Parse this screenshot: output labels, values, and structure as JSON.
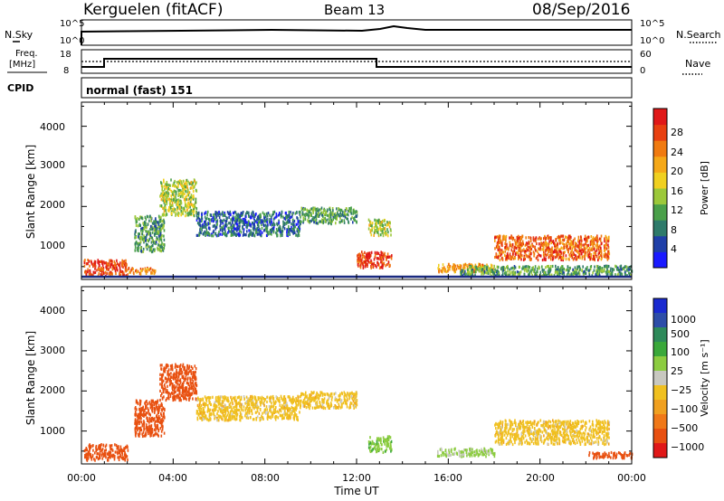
{
  "header": {
    "station": "Kerguelen (fitACF)",
    "beam": "Beam 13",
    "date": "08/Sep/2016"
  },
  "top_panels": {
    "nsky_label": "N.Sky",
    "nsky_ticks": [
      "10^5",
      "10^0"
    ],
    "nsearch_label": "N.Search",
    "nsearch_ticks": [
      "10^5",
      "10^0"
    ],
    "freq_label_1": "Freq.",
    "freq_label_2": "[MHz]",
    "freq_ticks": [
      "18",
      "8"
    ],
    "nave_label": "Nave",
    "nave_ticks": [
      "60",
      "0"
    ],
    "cpid_label": "CPID",
    "cpid_value": "normal (fast) 151"
  },
  "colorbars": {
    "power": {
      "label": "Power [dB]",
      "ticks": [
        "28",
        "24",
        "20",
        "16",
        "12",
        "8",
        "4"
      ],
      "colors": [
        "#1a1aff",
        "#1f3fa8",
        "#2e7a6a",
        "#4aa04a",
        "#9cc83a",
        "#f0d020",
        "#f5a818",
        "#f07a10",
        "#e84010",
        "#e01818"
      ]
    },
    "velocity": {
      "label": "Velocity [m s⁻¹]",
      "ticks": [
        "1000",
        "500",
        "100",
        "25",
        "−25",
        "−100",
        "−500",
        "−1000"
      ],
      "colors": [
        "#1a2ad0",
        "#2d4da8",
        "#2e8a5a",
        "#3aa83a",
        "#8ccc40",
        "#c8c8c0",
        "#f0c020",
        "#f0a020",
        "#f07818",
        "#e85010",
        "#e01818"
      ]
    }
  },
  "axes": {
    "ylabel": "Slant Range [km]",
    "yticks": [
      "4000",
      "3000",
      "2000",
      "1000"
    ],
    "xticks": [
      "00:00",
      "04:00",
      "08:00",
      "12:00",
      "16:00",
      "20:00",
      "00:00"
    ],
    "xlabel": "Time UT"
  },
  "chart_data": [
    {
      "type": "heatmap",
      "title": "",
      "xlabel": "",
      "ylabel": "Slant Range [km]",
      "x_range_hours": [
        0,
        24
      ],
      "ylim": [
        180,
        4600
      ],
      "colorbar": "Power [dB]",
      "regions": [
        {
          "x": [
            0.1,
            2.0
          ],
          "y": [
            300,
            700
          ],
          "value": 26
        },
        {
          "x": [
            2.0,
            3.2
          ],
          "y": [
            350,
            500
          ],
          "value": 22
        },
        {
          "x": [
            2.3,
            3.6
          ],
          "y": [
            900,
            1800
          ],
          "value": 10
        },
        {
          "x": [
            3.4,
            5.0
          ],
          "y": [
            1800,
            2700
          ],
          "value": 14
        },
        {
          "x": [
            5.0,
            9.5
          ],
          "y": [
            1300,
            1900
          ],
          "value": 6
        },
        {
          "x": [
            9.5,
            12.0
          ],
          "y": [
            1600,
            2000
          ],
          "value": 10
        },
        {
          "x": [
            12.0,
            13.5
          ],
          "y": [
            500,
            900
          ],
          "value": 26
        },
        {
          "x": [
            12.5,
            13.5
          ],
          "y": [
            1300,
            1700
          ],
          "value": 14
        },
        {
          "x": [
            15.5,
            18.0
          ],
          "y": [
            400,
            600
          ],
          "value": 20
        },
        {
          "x": [
            18.0,
            23.0
          ],
          "y": [
            700,
            1300
          ],
          "value": 24
        },
        {
          "x": [
            16.5,
            24.0
          ],
          "y": [
            300,
            550
          ],
          "value": 10
        }
      ]
    },
    {
      "type": "heatmap",
      "title": "",
      "xlabel": "Time UT",
      "ylabel": "Slant Range [km]",
      "x_range_hours": [
        0,
        24
      ],
      "ylim": [
        180,
        4600
      ],
      "colorbar": "Velocity [m s-1]",
      "regions": [
        {
          "x": [
            0.1,
            2.0
          ],
          "y": [
            300,
            700
          ],
          "value": -150
        },
        {
          "x": [
            2.3,
            3.6
          ],
          "y": [
            900,
            1800
          ],
          "value": -200
        },
        {
          "x": [
            3.4,
            5.0
          ],
          "y": [
            1800,
            2700
          ],
          "value": -150
        },
        {
          "x": [
            5.0,
            9.5
          ],
          "y": [
            1300,
            1900
          ],
          "value": 0
        },
        {
          "x": [
            9.5,
            12.0
          ],
          "y": [
            1600,
            2000
          ],
          "value": 0
        },
        {
          "x": [
            12.5,
            13.5
          ],
          "y": [
            500,
            900
          ],
          "value": 80
        },
        {
          "x": [
            15.5,
            18.0
          ],
          "y": [
            400,
            600
          ],
          "value": 60
        },
        {
          "x": [
            18.0,
            23.0
          ],
          "y": [
            700,
            1300
          ],
          "value": 0
        },
        {
          "x": [
            22.0,
            24.0
          ],
          "y": [
            350,
            500
          ],
          "value": -150
        }
      ]
    }
  ]
}
